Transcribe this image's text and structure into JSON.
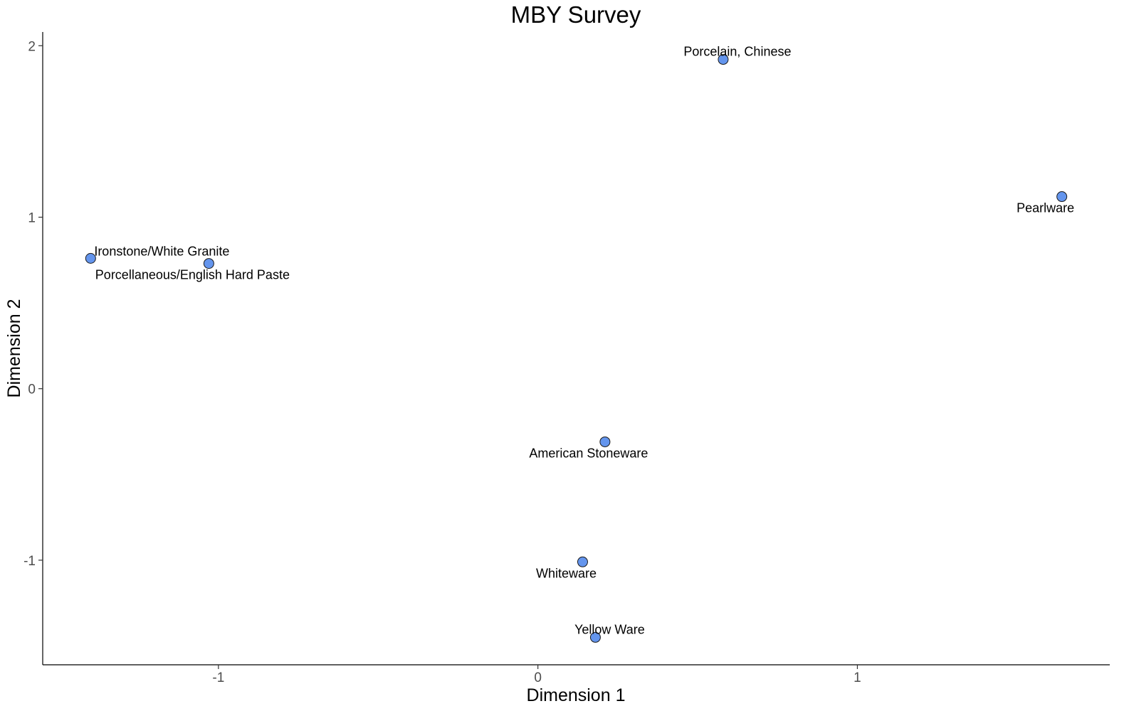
{
  "chart_data": {
    "type": "scatter",
    "title": "MBY Survey",
    "xlabel": "Dimension 1",
    "ylabel": "Dimension 2",
    "xlim": [
      -1.55,
      1.79
    ],
    "ylim": [
      -1.61,
      2.08
    ],
    "xticks": [
      -1,
      0,
      1
    ],
    "yticks": [
      -1,
      0,
      1,
      2
    ],
    "xtick_labels": [
      "-1",
      "0",
      "1"
    ],
    "ytick_labels": [
      "-1",
      "0",
      "1",
      "2"
    ],
    "grid": false,
    "point_color": "#6495ED",
    "point_outline": "#1a1a1a",
    "points": [
      {
        "label": "Porcelain, Chinese",
        "x": 0.58,
        "y": 1.92,
        "label_pos": "above"
      },
      {
        "label": "Pearlware",
        "x": 1.64,
        "y": 1.12,
        "label_pos": "below"
      },
      {
        "label": "Ironstone/White Granite",
        "x": -1.4,
        "y": 0.76,
        "label_pos": "above-right"
      },
      {
        "label": "Porcellaneous/English Hard Paste",
        "x": -1.03,
        "y": 0.73,
        "label_pos": "below"
      },
      {
        "label": "American Stoneware",
        "x": 0.21,
        "y": -0.31,
        "label_pos": "below"
      },
      {
        "label": "Whiteware",
        "x": 0.14,
        "y": -1.01,
        "label_pos": "below"
      },
      {
        "label": "Yellow Ware",
        "x": 0.18,
        "y": -1.45,
        "label_pos": "above"
      }
    ]
  }
}
